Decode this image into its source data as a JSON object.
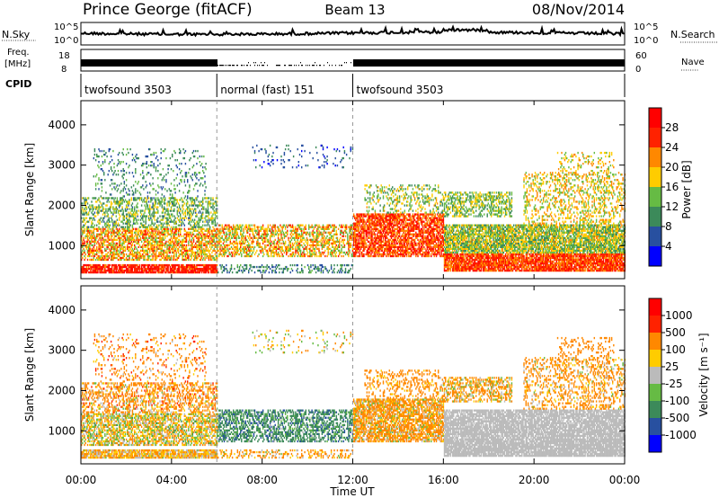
{
  "header": {
    "station": "Prince George (fitACF)",
    "beam": "Beam 13",
    "date": "08/Nov/2014"
  },
  "nsky_panel": {
    "left_label": "N.Sky",
    "right_label": "N.Search",
    "left_ticks": [
      "10^5",
      "10^0"
    ],
    "right_ticks": [
      "10^5",
      "10^0"
    ]
  },
  "freq_panel": {
    "left_label_1": "Freq.",
    "left_label_2": "[MHz]",
    "right_label": "Nave",
    "left_ticks": [
      "18",
      "8"
    ],
    "right_ticks": [
      "60",
      "0"
    ]
  },
  "cpid": {
    "label": "CPID",
    "segments": [
      {
        "name": "twofsound 3503",
        "start_h": 0,
        "end_h": 6
      },
      {
        "name": "normal (fast) 151",
        "start_h": 6,
        "end_h": 12
      },
      {
        "name": "twofsound 3503",
        "start_h": 12,
        "end_h": 24
      }
    ]
  },
  "chart_data": [
    {
      "type": "heatmap",
      "name": "power",
      "ylabel": "Slant Range [km]",
      "ylim": [
        180,
        4600
      ],
      "yticks": [
        "1000",
        "2000",
        "3000",
        "4000"
      ],
      "colorbar_label": "Power [dB]",
      "colorbar_ticks": [
        "4",
        "8",
        "12",
        "16",
        "20",
        "24",
        "28"
      ],
      "colorbar_range": [
        0,
        32
      ],
      "colors": [
        "#0000ff",
        "#2850a0",
        "#3c8a5a",
        "#66bb44",
        "#ffcc00",
        "#ff8800",
        "#ff2200",
        "#ff0000"
      ]
    },
    {
      "type": "heatmap",
      "name": "velocity",
      "ylabel": "Slant Range [km]",
      "ylim": [
        180,
        4600
      ],
      "yticks": [
        "1000",
        "2000",
        "3000",
        "4000"
      ],
      "colorbar_label": "Velocity [m s⁻¹]",
      "colorbar_ticks": [
        "1000",
        "500",
        "100",
        "25",
        "-25",
        "-100",
        "-500",
        "-1000"
      ],
      "colors": [
        "#0000ff",
        "#2850a0",
        "#3c8a5a",
        "#66bb44",
        "#bbbbbb",
        "#ffcc00",
        "#ff8800",
        "#ff2200",
        "#ff0000"
      ]
    }
  ],
  "xaxis": {
    "label": "Time UT",
    "ticks": [
      "00:00",
      "04:00",
      "08:00",
      "12:00",
      "16:00",
      "20:00",
      "00:00"
    ],
    "range_h": [
      0,
      24
    ]
  }
}
